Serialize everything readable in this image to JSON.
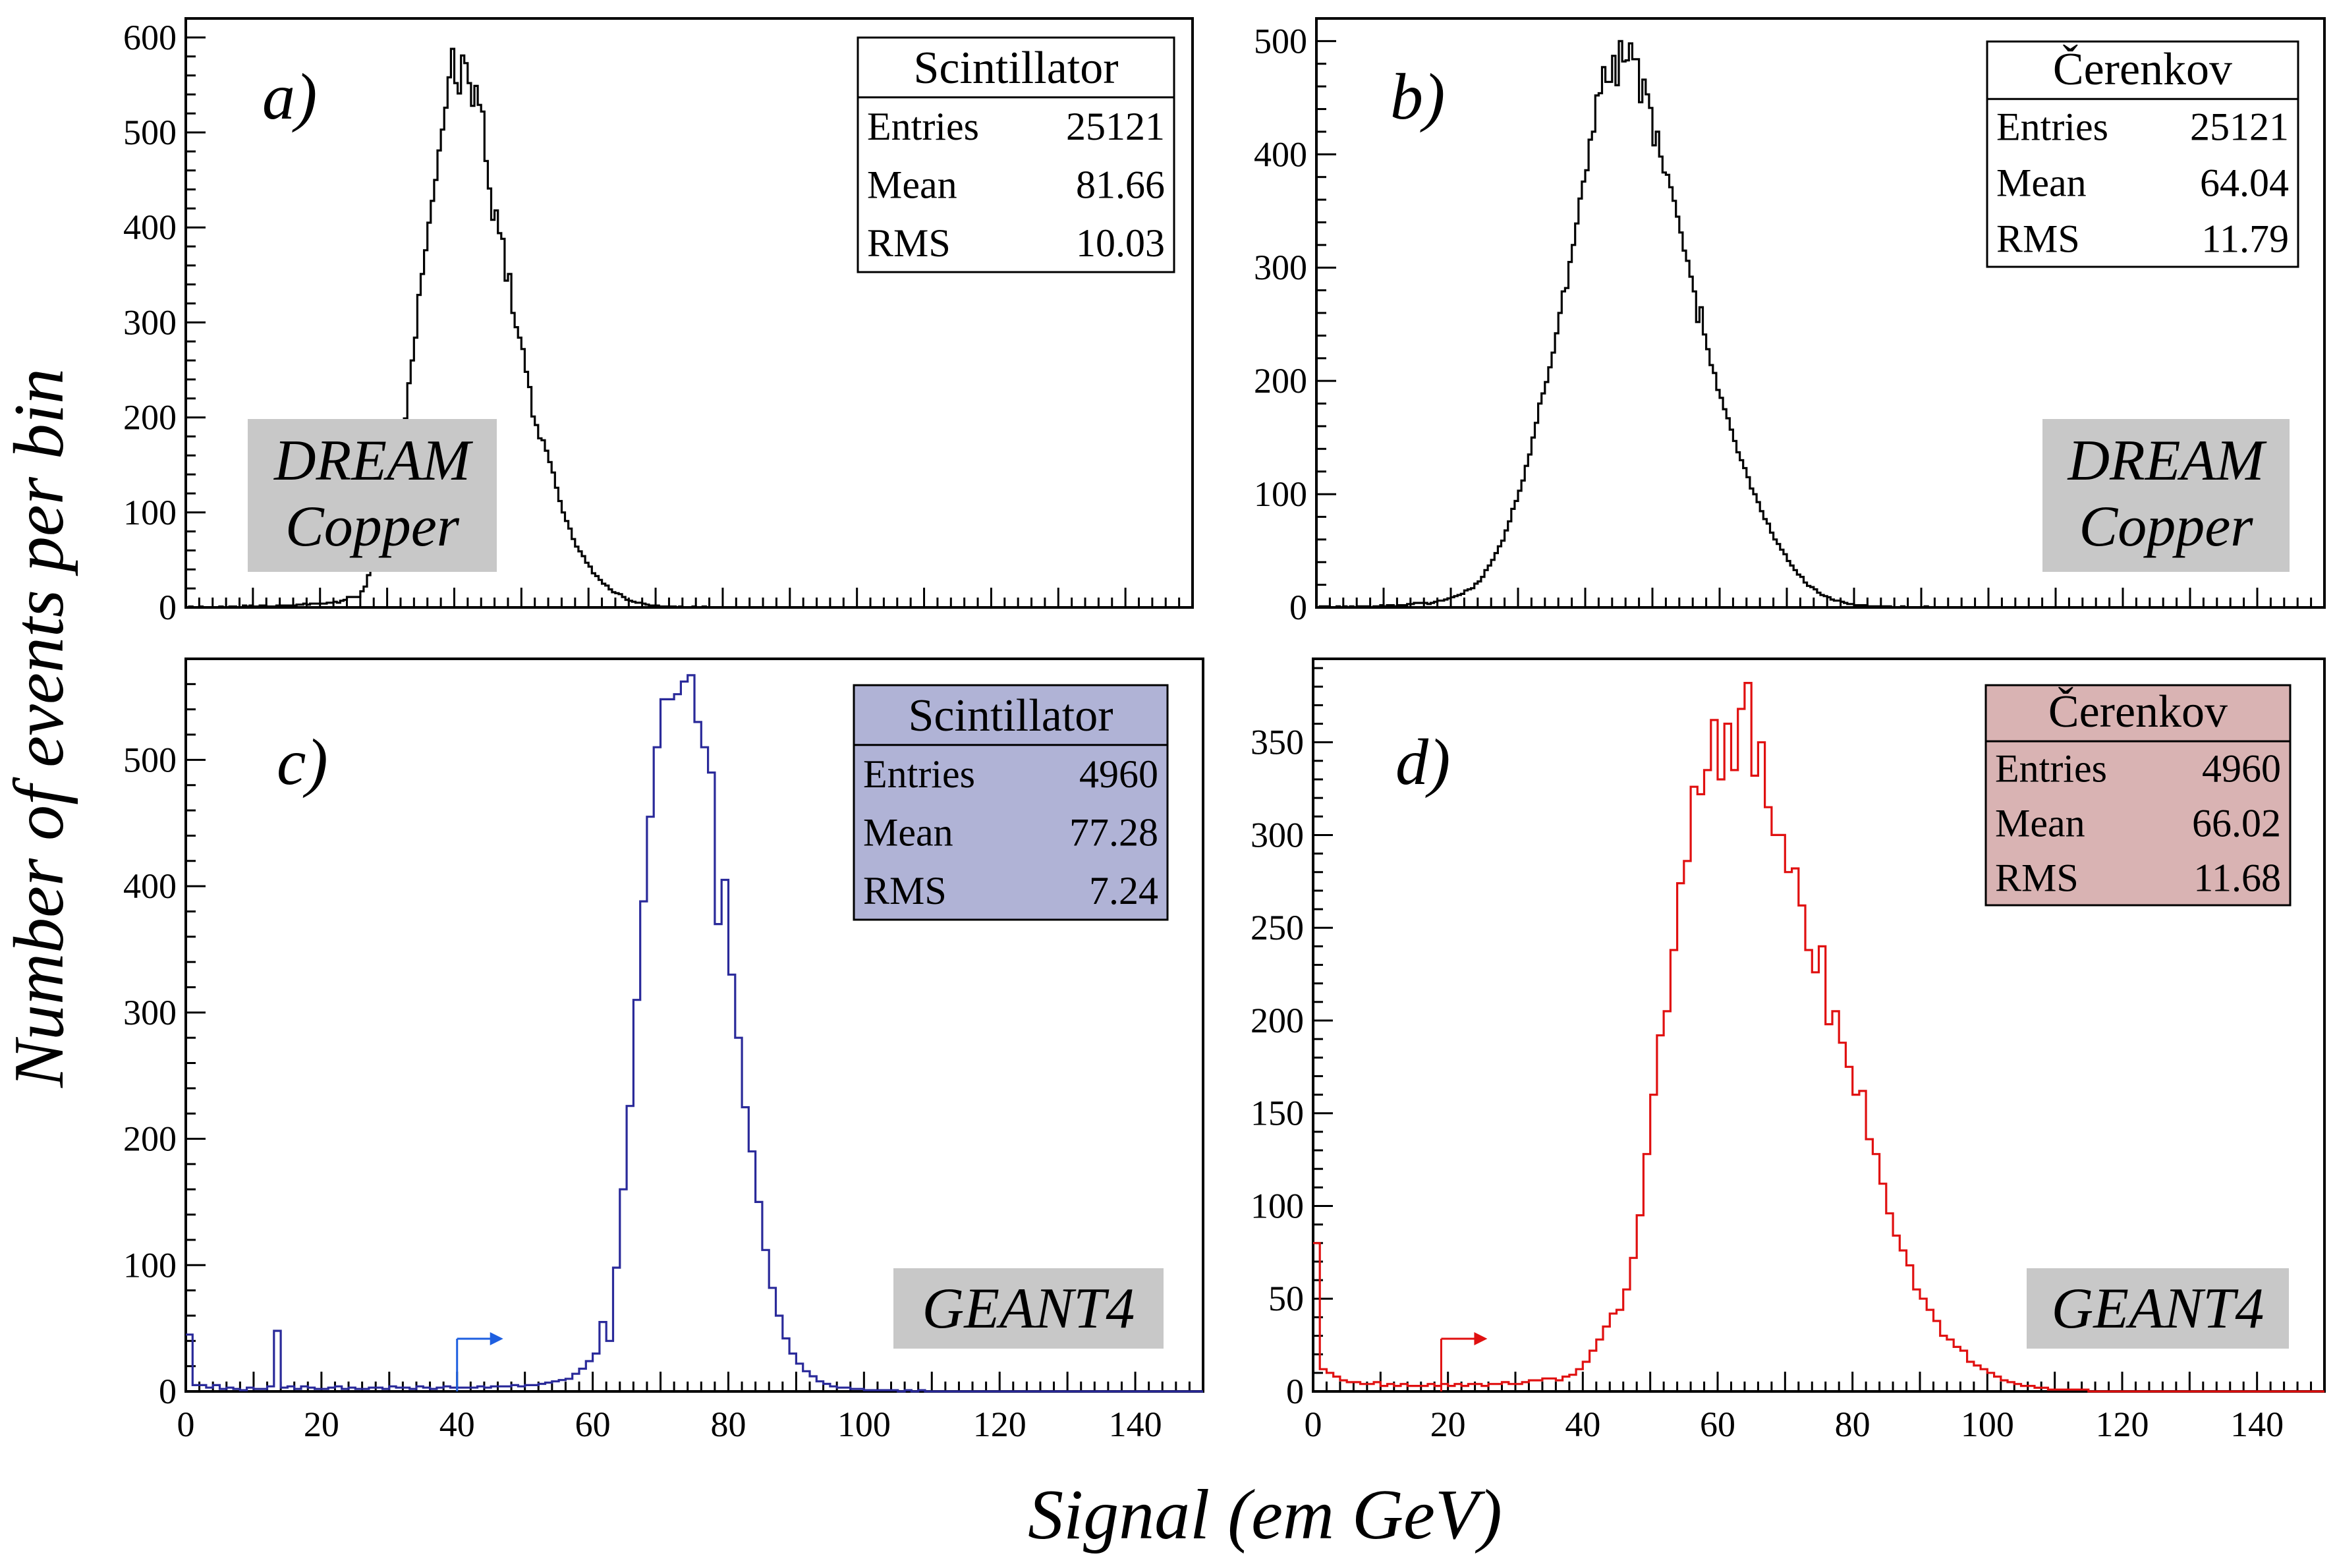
{
  "figure": {
    "ylabel": "Number of events per bin",
    "xlabel": "Signal (em GeV)"
  },
  "chart_data": [
    {
      "type": "histogram",
      "panel_label": "a)",
      "tag": [
        "DREAM",
        "Copper"
      ],
      "xlim": [
        0,
        150
      ],
      "ylim": [
        0,
        620
      ],
      "x_ticks": [],
      "y_ticks": [
        0,
        100,
        200,
        300,
        400,
        500,
        600
      ],
      "color": "#000000",
      "stats": {
        "title": "Scintillator",
        "background": "#ffffff",
        "rows": [
          {
            "label": "Entries",
            "value": "25121"
          },
          {
            "label": "Mean",
            "value": "81.66"
          },
          {
            "label": "RMS",
            "value": "10.03"
          }
        ]
      },
      "series": {
        "x_start": 0,
        "bin_width": 0.5,
        "values": [
          0,
          1,
          0,
          0,
          1,
          0,
          0,
          0,
          0,
          0,
          1,
          0,
          0,
          1,
          1,
          0,
          0,
          2,
          1,
          2,
          1,
          1,
          2,
          2,
          1,
          1,
          1,
          2,
          2,
          2,
          2,
          2,
          2,
          3,
          3,
          4,
          3,
          4,
          4,
          4,
          4,
          4,
          5,
          5,
          6,
          5,
          7,
          8,
          11,
          11,
          11,
          11,
          17,
          22,
          34,
          41,
          46,
          57,
          67,
          78,
          101,
          113,
          131,
          153,
          177,
          199,
          236,
          260,
          284,
          329,
          351,
          376,
          405,
          428,
          450,
          481,
          503,
          526,
          558,
          588,
          552,
          541,
          581,
          573,
          552,
          528,
          549,
          529,
          522,
          470,
          441,
          408,
          418,
          394,
          388,
          344,
          351,
          310,
          295,
          284,
          272,
          248,
          232,
          201,
          192,
          178,
          176,
          165,
          153,
          142,
          126,
          112,
          100,
          91,
          83,
          72,
          64,
          59,
          54,
          47,
          43,
          36,
          33,
          29,
          25,
          23,
          19,
          16,
          15,
          14,
          11,
          8,
          7,
          6,
          5,
          5,
          4,
          3,
          2,
          2,
          2,
          1,
          1,
          1,
          1,
          1,
          0,
          1,
          0,
          0,
          0,
          1,
          0,
          0,
          1,
          0,
          0,
          0,
          0,
          0,
          0,
          0,
          0,
          0,
          0,
          0,
          0,
          0,
          0,
          0,
          0,
          0,
          0,
          0,
          0,
          0,
          0,
          0,
          0,
          0,
          0,
          0,
          0,
          0,
          0,
          0,
          0,
          0,
          0,
          0,
          0,
          0,
          0,
          0,
          0,
          0,
          0,
          0,
          0,
          0,
          0,
          0,
          0,
          0,
          0,
          0,
          0,
          0,
          0,
          0,
          0,
          0,
          0,
          0,
          0,
          0,
          0,
          0,
          0,
          0,
          0,
          0,
          0,
          0,
          0,
          0,
          0,
          0,
          0,
          0,
          0,
          0,
          0,
          0,
          0,
          0,
          0,
          0,
          0,
          0,
          0,
          0,
          0,
          0,
          0,
          0,
          0,
          0,
          0,
          0,
          0,
          0,
          0,
          0,
          0,
          0,
          0,
          0,
          0,
          0,
          0,
          0,
          0,
          0,
          0,
          0,
          0,
          0,
          0,
          0,
          0,
          0,
          0,
          0,
          0,
          0,
          0,
          0,
          0,
          0,
          0,
          0,
          0,
          0,
          0,
          0,
          0,
          0,
          0,
          0,
          0,
          0,
          0,
          0,
          0,
          0,
          0,
          0,
          0,
          0,
          0,
          0,
          0,
          0,
          0,
          0,
          0,
          0,
          0
        ]
      }
    },
    {
      "type": "histogram",
      "panel_label": "b)",
      "tag": [
        "DREAM",
        "Copper"
      ],
      "xlim": [
        0,
        150
      ],
      "ylim": [
        0,
        520
      ],
      "x_ticks": [],
      "y_ticks": [
        0,
        100,
        200,
        300,
        400,
        500
      ],
      "color": "#000000",
      "stats": {
        "title": "Čerenkov",
        "background": "#ffffff",
        "rows": [
          {
            "label": "Entries",
            "value": "25121"
          },
          {
            "label": "Mean",
            "value": "64.04"
          },
          {
            "label": "RMS",
            "value": "11.79"
          }
        ]
      },
      "series": {
        "x_start": 0,
        "bin_width": 0.5,
        "values": [
          0,
          1,
          1,
          1,
          0,
          0,
          1,
          0,
          1,
          0,
          1,
          0,
          1,
          1,
          1,
          1,
          0,
          1,
          1,
          2,
          1,
          2,
          2,
          1,
          2,
          2,
          2,
          3,
          3,
          4,
          4,
          4,
          4,
          3,
          4,
          5,
          6,
          6,
          7,
          8,
          9,
          10,
          11,
          12,
          15,
          16,
          17,
          21,
          23,
          27,
          33,
          37,
          42,
          48,
          54,
          59,
          68,
          76,
          87,
          94,
          103,
          112,
          125,
          135,
          150,
          163,
          180,
          189,
          199,
          212,
          225,
          242,
          260,
          279,
          282,
          305,
          320,
          339,
          361,
          376,
          386,
          413,
          420,
          452,
          454,
          477,
          464,
          464,
          487,
          461,
          500,
          482,
          483,
          498,
          484,
          484,
          446,
          466,
          453,
          441,
          408,
          420,
          398,
          384,
          382,
          371,
          359,
          345,
          331,
          315,
          306,
          292,
          279,
          252,
          265,
          241,
          228,
          214,
          207,
          192,
          185,
          175,
          167,
          157,
          147,
          137,
          130,
          123,
          115,
          105,
          100,
          93,
          85,
          78,
          74,
          66,
          60,
          56,
          51,
          47,
          41,
          37,
          33,
          29,
          27,
          22,
          19,
          18,
          16,
          13,
          11,
          10,
          9,
          7,
          6,
          6,
          5,
          4,
          3,
          3,
          2,
          2,
          2,
          2,
          1,
          1,
          1,
          1,
          1,
          1,
          1,
          0,
          0,
          0,
          1,
          0,
          0,
          0,
          0,
          0,
          0,
          1,
          0,
          0,
          0,
          0,
          0,
          0,
          0,
          0,
          0,
          0,
          0,
          0,
          0,
          0,
          0,
          0,
          0,
          0,
          0,
          0,
          0,
          0,
          0,
          0,
          0,
          0,
          0,
          0,
          0,
          0,
          0,
          0,
          0,
          0,
          0,
          0,
          0,
          0,
          0,
          0,
          0,
          0,
          0,
          0,
          0,
          0,
          0,
          0,
          0,
          0,
          0,
          0,
          0,
          0,
          0,
          0,
          0,
          0,
          0,
          0,
          0,
          0,
          0,
          0,
          0,
          0,
          0,
          0,
          0,
          0,
          0,
          0,
          0,
          0,
          0,
          0,
          0,
          0,
          0,
          0,
          0,
          0,
          0,
          0,
          0,
          0,
          0,
          0,
          0,
          0,
          0,
          0,
          0,
          0,
          0,
          0,
          0,
          0,
          0,
          0,
          0,
          0,
          0,
          0,
          0,
          0,
          0,
          0,
          0,
          0,
          0,
          0,
          0,
          0,
          0,
          0,
          0,
          0,
          0,
          0,
          0,
          0,
          0,
          0,
          0,
          0
        ]
      }
    },
    {
      "type": "histogram",
      "panel_label": "c)",
      "tag": [
        "GEANT4"
      ],
      "xlim": [
        0,
        150
      ],
      "ylim": [
        0,
        580
      ],
      "x_ticks": [
        0,
        20,
        40,
        60,
        80,
        100,
        120,
        140
      ],
      "y_ticks": [
        0,
        100,
        200,
        300,
        400,
        500
      ],
      "color": "#2a2a9a",
      "marker": {
        "x": 40,
        "color": "#1e5fe0"
      },
      "stats": {
        "title": "Scintillator",
        "background": "#b0b3d6",
        "rows": [
          {
            "label": "Entries",
            "value": "4960"
          },
          {
            "label": "Mean",
            "value": "77.28"
          },
          {
            "label": "RMS",
            "value": "7.24"
          }
        ]
      },
      "series": {
        "x_start": 0,
        "bin_width": 1,
        "values": [
          45,
          5,
          5,
          3,
          5,
          2,
          3,
          2,
          1,
          3,
          2,
          2,
          4,
          48,
          3,
          4,
          2,
          4,
          3,
          2,
          2,
          3,
          4,
          2,
          3,
          2,
          2,
          3,
          3,
          2,
          4,
          3,
          3,
          2,
          4,
          3,
          2,
          3,
          4,
          3,
          3,
          3,
          3,
          4,
          3,
          4,
          4,
          4,
          5,
          4,
          5,
          5,
          6,
          7,
          8,
          9,
          10,
          14,
          18,
          24,
          30,
          55,
          40,
          98,
          160,
          226,
          310,
          388,
          455,
          510,
          548,
          548,
          552,
          562,
          567,
          530,
          510,
          490,
          370,
          405,
          330,
          280,
          225,
          190,
          150,
          112,
          82,
          60,
          42,
          30,
          22,
          16,
          12,
          8,
          6,
          4,
          3,
          3,
          2,
          2,
          1,
          1,
          1,
          1,
          1,
          0,
          1,
          0,
          1,
          0,
          0,
          0,
          0,
          0,
          0,
          0,
          0,
          0,
          0,
          0,
          0,
          0,
          0,
          0,
          0,
          0,
          0,
          0,
          0,
          0,
          0,
          0,
          0,
          0,
          0,
          0,
          0,
          0,
          0,
          0,
          0,
          0,
          0,
          0,
          0,
          0,
          0,
          0,
          0,
          0
        ]
      }
    },
    {
      "type": "histogram",
      "panel_label": "d)",
      "tag": [
        "GEANT4"
      ],
      "xlim": [
        0,
        150
      ],
      "ylim": [
        0,
        395
      ],
      "x_ticks": [
        0,
        20,
        40,
        60,
        80,
        100,
        120,
        140
      ],
      "y_ticks": [
        0,
        50,
        100,
        150,
        200,
        250,
        300,
        350
      ],
      "color": "#e01010",
      "marker": {
        "x": 19,
        "color": "#e01010"
      },
      "stats": {
        "title": "Čerenkov",
        "background": "#d9b3b3",
        "rows": [
          {
            "label": "Entries",
            "value": "4960"
          },
          {
            "label": "Mean",
            "value": "66.02"
          },
          {
            "label": "RMS",
            "value": "11.68"
          }
        ]
      },
      "series": {
        "x_start": 0,
        "bin_width": 1,
        "values": [
          80,
          12,
          10,
          8,
          6,
          5,
          5,
          4,
          4,
          5,
          3,
          4,
          3,
          4,
          3,
          3,
          3,
          4,
          3,
          4,
          3,
          4,
          3,
          4,
          4,
          3,
          4,
          4,
          5,
          4,
          4,
          5,
          6,
          6,
          7,
          7,
          6,
          8,
          9,
          12,
          16,
          22,
          28,
          35,
          42,
          44,
          55,
          72,
          95,
          128,
          160,
          192,
          205,
          238,
          274,
          286,
          326,
          322,
          335,
          362,
          330,
          360,
          335,
          368,
          382,
          332,
          350,
          315,
          300,
          300,
          280,
          282,
          262,
          238,
          226,
          240,
          198,
          205,
          188,
          175,
          160,
          162,
          136,
          128,
          112,
          96,
          84,
          76,
          68,
          55,
          50,
          44,
          38,
          30,
          28,
          24,
          22,
          16,
          14,
          12,
          10,
          8,
          6,
          5,
          4,
          3,
          3,
          2,
          2,
          1,
          1,
          1,
          1,
          1,
          1,
          0,
          0,
          0,
          0,
          0,
          0,
          0,
          0,
          0,
          0,
          0,
          0,
          0,
          0,
          0,
          0,
          0,
          0,
          0,
          0,
          0,
          0,
          0,
          0,
          0,
          0,
          0,
          0,
          0,
          0,
          0,
          0,
          0,
          0,
          0
        ]
      }
    }
  ]
}
